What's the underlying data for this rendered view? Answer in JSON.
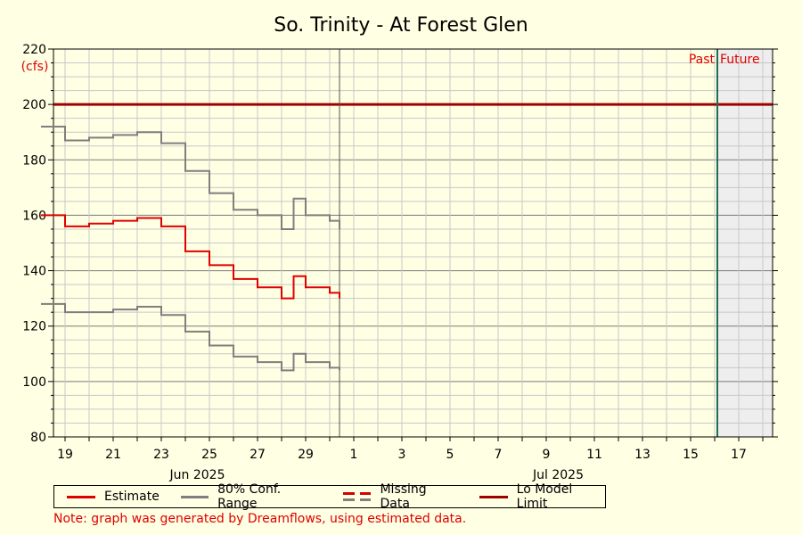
{
  "chart_data": {
    "type": "line",
    "title": "So. Trinity - At Forest Glen",
    "ylabel": "(cfs)",
    "xlabel": "",
    "ylim": [
      80,
      220
    ],
    "y_ticks": [
      80,
      100,
      120,
      140,
      160,
      180,
      200,
      220
    ],
    "x_tick_labels": [
      "19",
      "21",
      "23",
      "25",
      "27",
      "29",
      "1",
      "3",
      "5",
      "7",
      "9",
      "11",
      "13",
      "15",
      "17"
    ],
    "month_labels": [
      "Jun 2025",
      "Jul 2025"
    ],
    "grid": true,
    "past_label": "Past",
    "future_label": "Future",
    "lo_model_limit": 200,
    "x": [
      "2025-06-18",
      "2025-06-19",
      "2025-06-20",
      "2025-06-21",
      "2025-06-22",
      "2025-06-23",
      "2025-06-24",
      "2025-06-25",
      "2025-06-26",
      "2025-06-27",
      "2025-06-28",
      "2025-06-28 12:00",
      "2025-06-29",
      "2025-06-30",
      "2025-07-01"
    ],
    "series": [
      {
        "name": "Estimate",
        "values": [
          160,
          156,
          157,
          158,
          159,
          156,
          147,
          142,
          137,
          134,
          130,
          138,
          134,
          132,
          130
        ]
      },
      {
        "name": "80% Conf. Range",
        "values": [
          192,
          187,
          188,
          189,
          190,
          186,
          176,
          168,
          162,
          160,
          155,
          166,
          160,
          158,
          155
        ]
      },
      {
        "name": "80% Conf. Range",
        "values": [
          128,
          125,
          125,
          126,
          127,
          124,
          118,
          113,
          109,
          107,
          104,
          110,
          107,
          105,
          104
        ]
      }
    ],
    "colors": {
      "estimate": "#e00000",
      "conf_range": "#7f7f7f",
      "missing": "#d40000",
      "limit": "#a00000",
      "now_line": "#1f6e4f",
      "future_shade": "#eeeeee"
    },
    "legend": {
      "estimate": "Estimate",
      "conf_range": "80% Conf. Range",
      "missing": "Missing Data",
      "limit": "Lo Model Limit"
    }
  },
  "note": "Note: graph was generated by Dreamflows, using estimated data."
}
